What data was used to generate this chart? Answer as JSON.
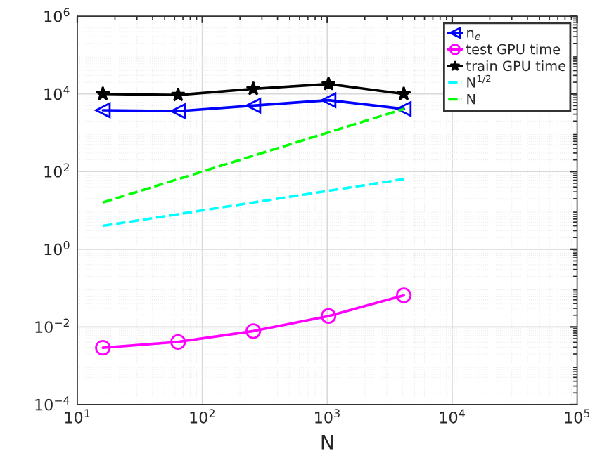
{
  "chart_data": {
    "type": "line",
    "xlabel": "N",
    "log": "xy",
    "grid": true,
    "legend": "top right",
    "x": [
      16,
      64,
      256,
      1024,
      4096
    ],
    "xlim": [
      10,
      100000
    ],
    "ylim": [
      0.0001,
      1000000
    ],
    "xticks": [
      {
        "value": 10,
        "label": "10$^{1}$"
      },
      {
        "value": 100,
        "label": "10$^{2}$"
      },
      {
        "value": 1000,
        "label": "10$^{3}$"
      },
      {
        "value": 10000,
        "label": "10$^{4}$"
      },
      {
        "value": 100000,
        "label": "10$^{5}$"
      }
    ],
    "yticks": [
      {
        "value": 0.0001,
        "label": "10$^{−4}$"
      },
      {
        "value": 0.01,
        "label": "10$^{−2}$"
      },
      {
        "value": 1,
        "label": "10$^{0}$"
      },
      {
        "value": 100,
        "label": "10$^{2}$"
      },
      {
        "value": 10000,
        "label": "10$^{4}$"
      },
      {
        "value": 1000000,
        "label": "10$^{6}$"
      }
    ],
    "series": [
      {
        "name": "n$_{e}$",
        "color": "#0000ff",
        "marker": "triangle",
        "line_style": "solid",
        "values": [
          3800,
          3600,
          5000,
          6900,
          4100
        ]
      },
      {
        "name": "test GPU time",
        "color": "#ff00ff",
        "marker": "circle",
        "line_style": "solid",
        "values": [
          0.0029,
          0.0041,
          0.0078,
          0.019,
          0.065
        ]
      },
      {
        "name": "train GPU time",
        "color": "#000000",
        "marker": "star",
        "line_style": "solid",
        "values": [
          10000,
          9400,
          13500,
          18000,
          10000
        ]
      },
      {
        "name": "N$^{1/2}$",
        "color": "#00ffff",
        "marker": "none",
        "line_style": "dashed",
        "values": [
          4,
          8,
          16,
          32,
          64
        ]
      },
      {
        "name": "N",
        "color": "#00ff00",
        "marker": "none",
        "line_style": "dashed",
        "values": [
          16,
          64,
          256,
          1024,
          4096
        ]
      }
    ]
  }
}
